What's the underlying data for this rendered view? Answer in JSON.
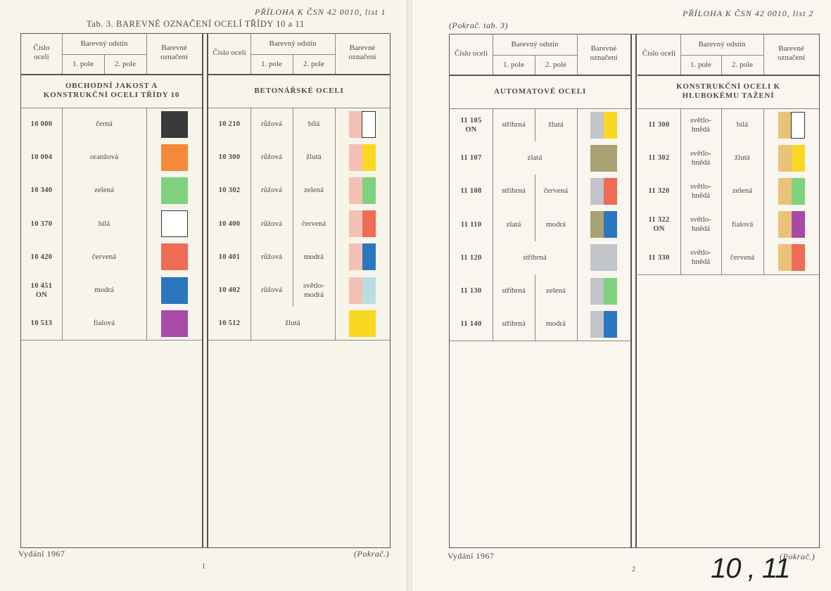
{
  "colors": {
    "černá": "#3b3a3a",
    "oranžová": "#f28a3a",
    "zelená": "#7fd27e",
    "bílá": "#ffffff",
    "červená": "#ee6b55",
    "modrá": "#2b77bf",
    "fialová": "#a94aa9",
    "růžová": "#f5c0b4",
    "žlutá": "#f9d824",
    "světlomodrá": "#b9dde2",
    "stříbrná": "#c1c5c9",
    "zlatá": "#aaa273",
    "světlohnědá": "#e9c27a"
  },
  "page1": {
    "header": "PŘÍLOHA K ČSN 42 0010, list 1",
    "title": "Tab. 3. BAREVNÉ OZNAČENÍ OCELÍ TŘÍDY 10 a 11",
    "footer_left": "Vydání 1967",
    "footer_right": "(Pokrač.)",
    "page_number": "1"
  },
  "page2": {
    "header": "PŘÍLOHA K ČSN 42 0010, list 2",
    "subtitle": "(Pokrač. tab. 3)",
    "footer_left": "Vydání 1967",
    "footer_right": "(Pokrač.)",
    "page_number": "2",
    "handwritten": "10 , 11"
  },
  "columns": {
    "number": "Číslo oceli",
    "shade": "Barevný odstín",
    "field1": "1. pole",
    "field2": "2. pole",
    "marking": "Barevné označení"
  },
  "tables": [
    {
      "section": "OBCHODNÍ JAKOST A KONSTRUKČNÍ OCELI TŘÍDY 10",
      "rows": [
        {
          "num": "10 000",
          "c1": "černá",
          "c2": "",
          "sw": [
            "černá"
          ]
        },
        {
          "num": "10 004",
          "c1": "oranžová",
          "c2": "",
          "sw": [
            "oranžová"
          ]
        },
        {
          "num": "10 340",
          "c1": "zelená",
          "c2": "",
          "sw": [
            "zelená"
          ]
        },
        {
          "num": "10 370",
          "c1": "bílá",
          "c2": "",
          "sw": [
            "bílá"
          ]
        },
        {
          "num": "10 420",
          "c1": "červená",
          "c2": "",
          "sw": [
            "červená"
          ]
        },
        {
          "num": "10 451 ON",
          "c1": "modrá",
          "c2": "",
          "sw": [
            "modrá"
          ]
        },
        {
          "num": "10 513",
          "c1": "fialová",
          "c2": "",
          "sw": [
            "fialová"
          ]
        }
      ]
    },
    {
      "section": "BETONÁŘSKÉ OCELI",
      "rows": [
        {
          "num": "10 210",
          "c1": "růžová",
          "c2": "bílá",
          "sw": [
            "růžová",
            "bílá"
          ]
        },
        {
          "num": "10 300",
          "c1": "růžová",
          "c2": "žlutá",
          "sw": [
            "růžová",
            "žlutá"
          ]
        },
        {
          "num": "10 302",
          "c1": "růžová",
          "c2": "zelená",
          "sw": [
            "růžová",
            "zelená"
          ]
        },
        {
          "num": "10 400",
          "c1": "růžová",
          "c2": "červená",
          "sw": [
            "růžová",
            "červená"
          ]
        },
        {
          "num": "10 401",
          "c1": "růžová",
          "c2": "modrá",
          "sw": [
            "růžová",
            "modrá"
          ]
        },
        {
          "num": "10 402",
          "c1": "růžová",
          "c2": "světlo-modrá",
          "sw": [
            "růžová",
            "světlomodrá"
          ]
        },
        {
          "num": "10 512",
          "c1": "žlutá",
          "c2": "",
          "sw": [
            "žlutá"
          ]
        }
      ]
    },
    {
      "section": "AUTOMATOVÉ OCELI",
      "rows": [
        {
          "num": "11 105 ON",
          "c1": "stříbrná",
          "c2": "žlutá",
          "sw": [
            "stříbrná",
            "žlutá"
          ]
        },
        {
          "num": "11 107",
          "c1": "zlatá",
          "c2": "",
          "sw": [
            "zlatá"
          ]
        },
        {
          "num": "11 108",
          "c1": "stříbrná",
          "c2": "červená",
          "sw": [
            "stříbrná",
            "červená"
          ]
        },
        {
          "num": "11 110",
          "c1": "zlatá",
          "c2": "modrá",
          "sw": [
            "zlatá",
            "modrá"
          ]
        },
        {
          "num": "11 120",
          "c1": "stříbrná",
          "c2": "",
          "sw": [
            "stříbrná"
          ]
        },
        {
          "num": "11 130",
          "c1": "stříbrná",
          "c2": "zelená",
          "sw": [
            "stříbrná",
            "zelená"
          ]
        },
        {
          "num": "11 140",
          "c1": "stříbrná",
          "c2": "modrá",
          "sw": [
            "stříbrná",
            "modrá"
          ]
        }
      ]
    },
    {
      "section": "KONSTRUKČNÍ OCELI K HLUBOKÉMU TAŽENÍ",
      "rows": [
        {
          "num": "11 300",
          "c1": "světlo-hnědá",
          "c2": "bílá",
          "sw": [
            "světlohnědá",
            "bílá"
          ]
        },
        {
          "num": "11 302",
          "c1": "světlo-hnědá",
          "c2": "žlutá",
          "sw": [
            "světlohnědá",
            "žlutá"
          ]
        },
        {
          "num": "11 320",
          "c1": "světlo-hnědá",
          "c2": "zelená",
          "sw": [
            "světlohnědá",
            "zelená"
          ]
        },
        {
          "num": "11 322 ON",
          "c1": "světlo-hnědá",
          "c2": "fialová",
          "sw": [
            "světlohnědá",
            "fialová"
          ]
        },
        {
          "num": "11 330",
          "c1": "světlo-hnědá",
          "c2": "červená",
          "sw": [
            "světlohnědá",
            "červená"
          ]
        }
      ]
    }
  ]
}
